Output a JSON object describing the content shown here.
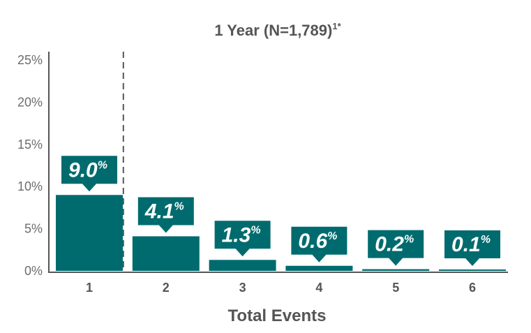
{
  "chart_data": {
    "type": "bar",
    "title": "1 Year (N=1,789)",
    "title_superscript": "1*",
    "xlabel": "Total Events",
    "ylabel": "",
    "categories": [
      "1",
      "2",
      "3",
      "4",
      "5",
      "6"
    ],
    "values": [
      9.0,
      4.1,
      1.3,
      0.6,
      0.2,
      0.1
    ],
    "data_labels": [
      "9.0",
      "4.1",
      "1.3",
      "0.6",
      "0.2",
      "0.1"
    ],
    "data_label_suffix": "%",
    "yticks": [
      "0%",
      "5%",
      "10%",
      "15%",
      "20%",
      "25%"
    ],
    "ylim": [
      0,
      25
    ],
    "grid": false,
    "legend": "none",
    "dashed_divider_after_category": "1",
    "colors": {
      "bar": "#006b6e",
      "callout": "#006b6e",
      "text": "#555555",
      "axis": "#555555"
    }
  }
}
